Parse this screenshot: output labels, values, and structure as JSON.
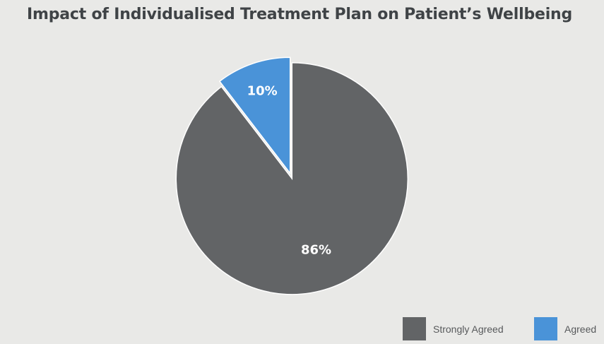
{
  "chart_data": {
    "type": "pie",
    "title": "Impact of Individualised Treatment Plan on Patient’s Wellbeing",
    "categories": [
      "Strongly Agreed",
      "Agreed"
    ],
    "values": [
      86,
      10
    ],
    "data_labels": [
      "86%",
      "10%"
    ],
    "colors": [
      "#626466",
      "#4a93d8"
    ],
    "start_angle_deg": 0,
    "direction": "clockwise",
    "legend": "bottom-right"
  }
}
